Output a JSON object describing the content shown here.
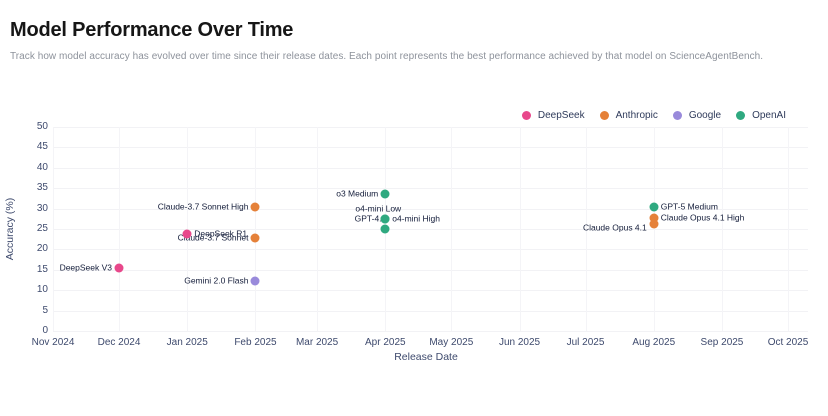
{
  "header": {
    "title": "Model Performance Over Time",
    "subtitle": "Track how model accuracy has evolved over time since their release dates. Each point represents the best performance achieved by that model on ScienceAgentBench."
  },
  "chart_data": {
    "type": "scatter",
    "title": "Model Performance Over Time",
    "xlabel": "Release Date",
    "ylabel": "Accuracy (%)",
    "grid": true,
    "legend_position": "top-right",
    "x_axis": {
      "start": "2024-11",
      "end": "2025-10",
      "ticks": [
        {
          "label": "Nov 2024",
          "date": "2024-11"
        },
        {
          "label": "Dec 2024",
          "date": "2024-12"
        },
        {
          "label": "Jan 2025",
          "date": "2025-01"
        },
        {
          "label": "Feb 2025",
          "date": "2025-02"
        },
        {
          "label": "Mar 2025",
          "date": "2025-03"
        },
        {
          "label": "Apr 2025",
          "date": "2025-04"
        },
        {
          "label": "May 2025",
          "date": "2025-05"
        },
        {
          "label": "Jun 2025",
          "date": "2025-06"
        },
        {
          "label": "Jul 2025",
          "date": "2025-07"
        },
        {
          "label": "Aug 2025",
          "date": "2025-08"
        },
        {
          "label": "Sep 2025",
          "date": "2025-09"
        },
        {
          "label": "Oct 2025",
          "date": "2025-10"
        }
      ]
    },
    "y_axis": {
      "min": 0,
      "max": 50,
      "tick_step": 5,
      "ticks": [
        0,
        5,
        10,
        15,
        20,
        25,
        30,
        35,
        40,
        45,
        50
      ]
    },
    "series": [
      {
        "name": "DeepSeek",
        "color": "#e8488b",
        "points": [
          {
            "model": "DeepSeek V3",
            "released": "2024-12",
            "accuracy": 15.4,
            "label_side": "left"
          },
          {
            "model": "DeepSeek R1",
            "released": "2025-01",
            "accuracy": 23.7,
            "label_side": "right"
          }
        ]
      },
      {
        "name": "Anthropic",
        "color": "#e58139",
        "points": [
          {
            "model": "Claude-3.7 Sonnet High",
            "released": "2025-02",
            "accuracy": 30.4,
            "label_side": "left"
          },
          {
            "model": "Claude-3.7 Sonnet",
            "released": "2025-02",
            "accuracy": 22.7,
            "label_side": "left"
          },
          {
            "model": "Claude Opus 4.1 High",
            "released": "2025-08",
            "accuracy": 27.6,
            "label_side": "right"
          },
          {
            "model": "Claude Opus 4.1",
            "released": "2025-08",
            "accuracy": 26.3,
            "label_side": "left",
            "label_dy": 4
          }
        ]
      },
      {
        "name": "Google",
        "color": "#998adb",
        "points": [
          {
            "model": "Gemini 2.0 Flash",
            "released": "2025-02",
            "accuracy": 12.3,
            "label_side": "left"
          }
        ]
      },
      {
        "name": "OpenAI",
        "color": "#2fa980",
        "points": [
          {
            "model": "o3 Medium",
            "released": "2025-04",
            "accuracy": 33.5,
            "label_side": "left"
          },
          {
            "model": "o4-mini Low",
            "released": "2025-04",
            "accuracy": 25.0,
            "label_side": "center",
            "label_dx": -7,
            "label_dy": -20
          },
          {
            "model": "GPT-4.1",
            "released": "2025-04",
            "accuracy": 27.4,
            "label_side": "left",
            "label_dx": 8
          },
          {
            "model": "o4-mini High",
            "released": "2025-04",
            "accuracy": 27.5,
            "label_side": "right"
          },
          {
            "model": "GPT-5 Medium",
            "released": "2025-08",
            "accuracy": 30.4,
            "label_side": "right"
          }
        ]
      }
    ]
  }
}
